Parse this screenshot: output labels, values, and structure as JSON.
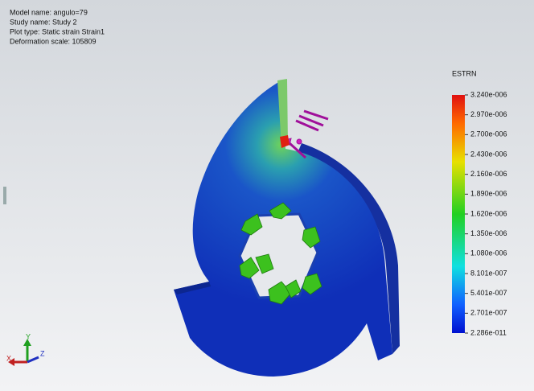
{
  "header": {
    "lines": [
      "Model name: angulo=79",
      "Study name: Study 2",
      "Plot type: Static strain Strain1",
      "Deformation scale: 105809"
    ]
  },
  "legend": {
    "title": "ESTRN",
    "labels": [
      "3.240e-006",
      "2.970e-006",
      "2.700e-006",
      "2.430e-006",
      "2.160e-006",
      "1.890e-006",
      "1.620e-006",
      "1.350e-006",
      "1.080e-006",
      "8.101e-007",
      "5.401e-007",
      "2.701e-007",
      "2.286e-011"
    ]
  },
  "triad": {
    "x": "X",
    "y": "Y",
    "z": "Z"
  }
}
